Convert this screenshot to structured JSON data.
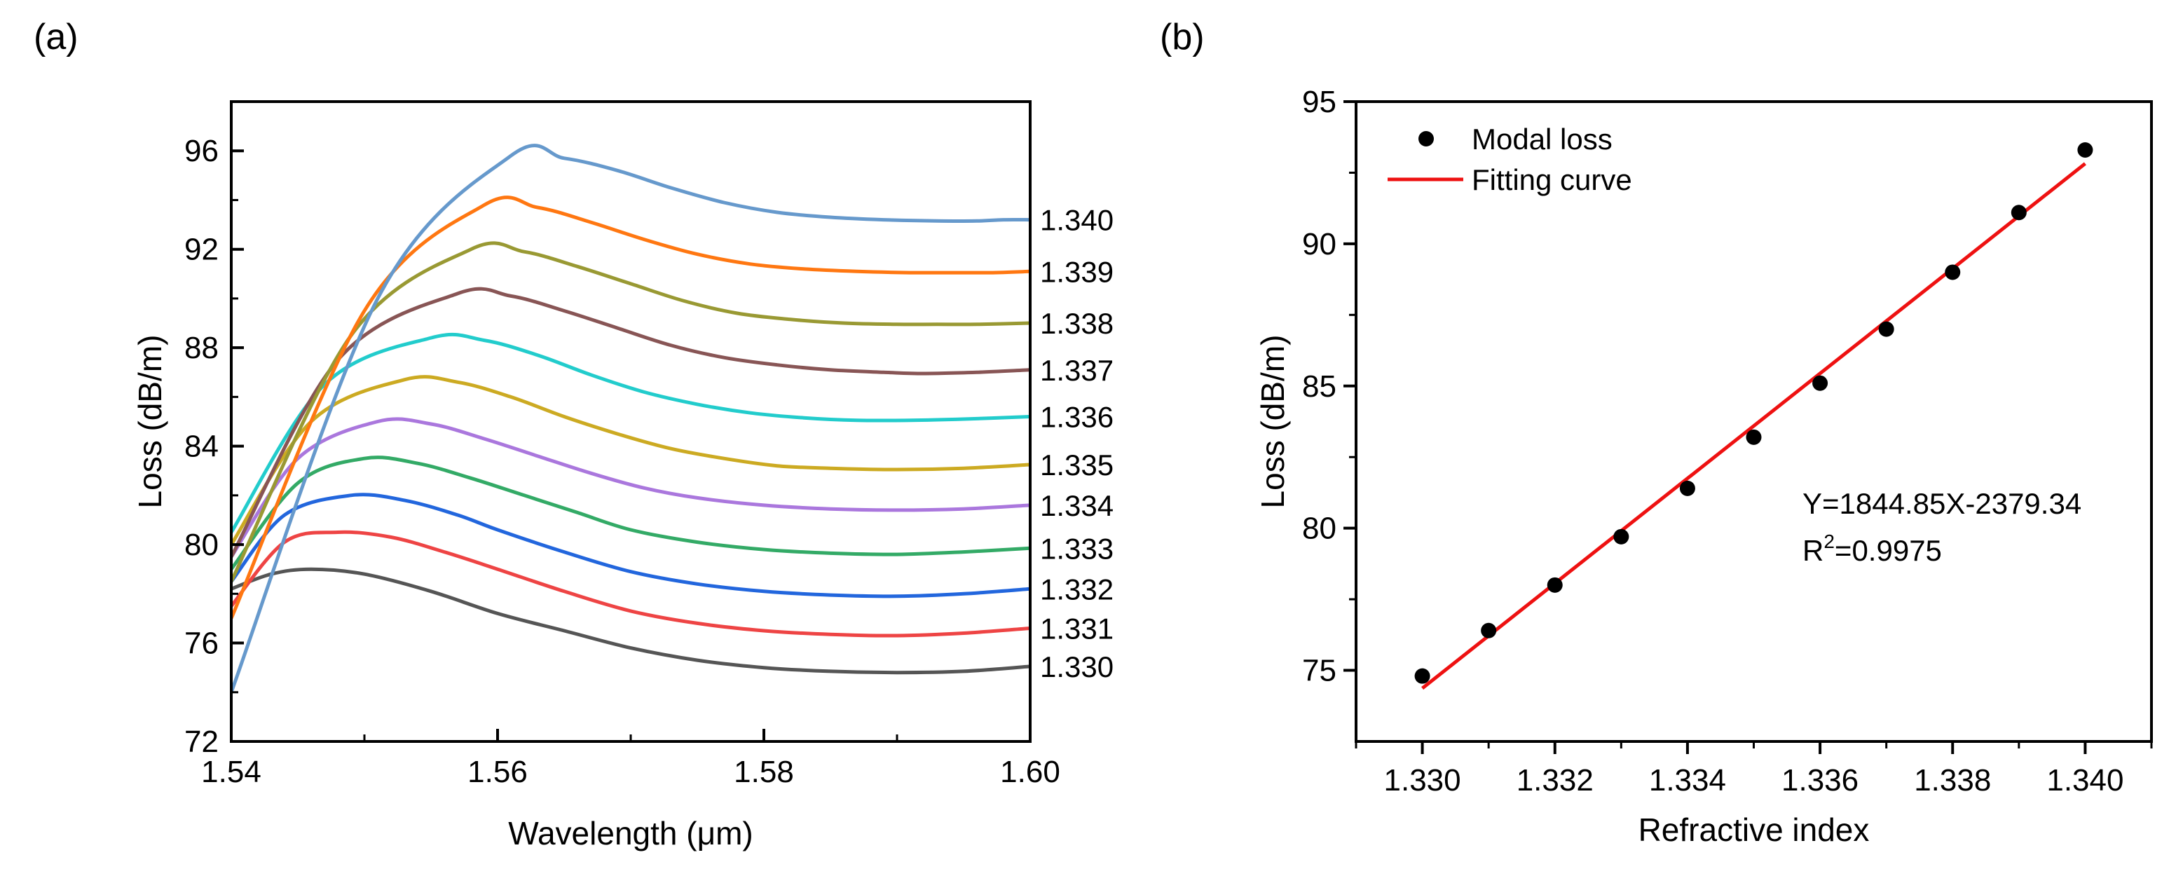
{
  "chart_data": [
    {
      "panel_label": "(a)",
      "type": "line",
      "xlabel": "Wavelength (μm)",
      "ylabel": "Loss (dB/m)",
      "xlim": [
        1.54,
        1.6
      ],
      "ylim": [
        72,
        98
      ],
      "xticks": [
        1.54,
        1.56,
        1.58,
        1.6
      ],
      "xtick_labels": [
        "1.54",
        "1.56",
        "1.58",
        "1.60"
      ],
      "yticks": [
        72,
        76,
        80,
        84,
        88,
        92,
        96
      ],
      "ytick_labels": [
        "72",
        "76",
        "80",
        "84",
        "88",
        "92",
        "96"
      ],
      "series": [
        {
          "name": "1.330",
          "color": "#555555",
          "x": [
            1.54,
            1.543,
            1.546,
            1.55,
            1.555,
            1.56,
            1.565,
            1.57,
            1.575,
            1.58,
            1.585,
            1.59,
            1.595,
            1.6
          ],
          "values": [
            78.2,
            78.8,
            79.0,
            78.8,
            78.1,
            77.2,
            76.5,
            75.8,
            75.3,
            75.0,
            74.85,
            74.8,
            74.85,
            75.05
          ]
        },
        {
          "name": "1.331",
          "color": "#ee4444",
          "x": [
            1.54,
            1.544,
            1.548,
            1.552,
            1.556,
            1.56,
            1.565,
            1.57,
            1.575,
            1.58,
            1.585,
            1.59,
            1.595,
            1.6
          ],
          "values": [
            77.5,
            80.1,
            80.5,
            80.3,
            79.7,
            79.0,
            78.1,
            77.3,
            76.8,
            76.5,
            76.35,
            76.3,
            76.4,
            76.6
          ]
        },
        {
          "name": "1.332",
          "color": "#2266dd",
          "x": [
            1.54,
            1.544,
            1.549,
            1.553,
            1.557,
            1.56,
            1.565,
            1.57,
            1.575,
            1.58,
            1.585,
            1.59,
            1.595,
            1.6
          ],
          "values": [
            78.5,
            81.2,
            82.0,
            81.8,
            81.2,
            80.6,
            79.7,
            78.9,
            78.4,
            78.1,
            77.95,
            77.9,
            78.0,
            78.2
          ]
        },
        {
          "name": "1.333",
          "color": "#33aa66",
          "x": [
            1.54,
            1.545,
            1.55,
            1.554,
            1.558,
            1.562,
            1.566,
            1.57,
            1.575,
            1.58,
            1.585,
            1.59,
            1.595,
            1.6
          ],
          "values": [
            79.0,
            82.5,
            83.5,
            83.3,
            82.7,
            82.0,
            81.3,
            80.6,
            80.1,
            79.8,
            79.65,
            79.6,
            79.7,
            79.85
          ]
        },
        {
          "name": "1.334",
          "color": "#aa77dd",
          "x": [
            1.54,
            1.545,
            1.551,
            1.555,
            1.559,
            1.563,
            1.567,
            1.571,
            1.575,
            1.58,
            1.585,
            1.59,
            1.595,
            1.6
          ],
          "values": [
            79.5,
            83.5,
            85.0,
            84.9,
            84.3,
            83.6,
            82.9,
            82.3,
            81.9,
            81.6,
            81.45,
            81.4,
            81.45,
            81.6
          ]
        },
        {
          "name": "1.335",
          "color": "#ccaa22",
          "x": [
            1.54,
            1.546,
            1.553,
            1.557,
            1.561,
            1.565,
            1.569,
            1.573,
            1.577,
            1.581,
            1.585,
            1.59,
            1.595,
            1.6
          ],
          "values": [
            80.0,
            85.0,
            86.7,
            86.6,
            86.0,
            85.2,
            84.5,
            83.9,
            83.5,
            83.2,
            83.1,
            83.05,
            83.1,
            83.25
          ]
        },
        {
          "name": "1.336",
          "color": "#22cccc",
          "x": [
            1.54,
            1.547,
            1.555,
            1.559,
            1.563,
            1.567,
            1.571,
            1.575,
            1.579,
            1.583,
            1.587,
            1.591,
            1.595,
            1.6
          ],
          "values": [
            80.5,
            86.5,
            88.4,
            88.3,
            87.7,
            86.9,
            86.2,
            85.7,
            85.35,
            85.15,
            85.05,
            85.05,
            85.1,
            85.2
          ]
        },
        {
          "name": "1.337",
          "color": "#885555",
          "x": [
            1.54,
            1.548,
            1.557,
            1.561,
            1.565,
            1.569,
            1.573,
            1.577,
            1.581,
            1.585,
            1.589,
            1.592,
            1.596,
            1.6
          ],
          "values": [
            79.5,
            87.5,
            90.2,
            90.1,
            89.5,
            88.8,
            88.1,
            87.6,
            87.3,
            87.1,
            87.0,
            86.95,
            87.0,
            87.1
          ]
        },
        {
          "name": "1.338",
          "color": "#999933",
          "x": [
            1.54,
            1.549,
            1.558,
            1.562,
            1.566,
            1.57,
            1.574,
            1.578,
            1.582,
            1.586,
            1.59,
            1.593,
            1.596,
            1.6
          ],
          "values": [
            78.5,
            88.5,
            92.0,
            91.9,
            91.3,
            90.6,
            89.9,
            89.4,
            89.15,
            89.0,
            88.95,
            88.95,
            88.95,
            89.0
          ]
        },
        {
          "name": "1.339",
          "color": "#ff7711",
          "x": [
            1.54,
            1.55,
            1.559,
            1.563,
            1.567,
            1.571,
            1.575,
            1.579,
            1.583,
            1.587,
            1.591,
            1.594,
            1.597,
            1.6
          ],
          "values": [
            77.0,
            89.5,
            93.8,
            93.7,
            93.1,
            92.4,
            91.8,
            91.4,
            91.2,
            91.1,
            91.05,
            91.05,
            91.05,
            91.1
          ]
        },
        {
          "name": "1.340",
          "color": "#6699cc",
          "x": [
            1.54,
            1.551,
            1.561,
            1.565,
            1.569,
            1.573,
            1.577,
            1.581,
            1.585,
            1.589,
            1.593,
            1.596,
            1.598,
            1.6
          ],
          "values": [
            74.0,
            90.0,
            95.8,
            95.7,
            95.2,
            94.5,
            93.9,
            93.5,
            93.3,
            93.2,
            93.15,
            93.15,
            93.2,
            93.2
          ]
        }
      ]
    },
    {
      "panel_label": "(b)",
      "type": "scatter",
      "xlabel": "Refractive index",
      "ylabel": "Loss (dB/m)",
      "xlim": [
        1.329,
        1.341
      ],
      "ylim": [
        72.5,
        95
      ],
      "xticks": [
        1.33,
        1.332,
        1.334,
        1.336,
        1.338,
        1.34
      ],
      "xtick_labels": [
        "1.330",
        "1.332",
        "1.334",
        "1.336",
        "1.338",
        "1.340"
      ],
      "yticks": [
        75,
        80,
        85,
        90,
        95
      ],
      "ytick_labels": [
        "75",
        "80",
        "85",
        "90",
        "95"
      ],
      "series": [
        {
          "name": "Modal loss",
          "kind": "scatter",
          "color": "#000000",
          "x": [
            1.33,
            1.331,
            1.332,
            1.333,
            1.334,
            1.335,
            1.336,
            1.337,
            1.338,
            1.339,
            1.34
          ],
          "values": [
            74.8,
            76.4,
            78.0,
            79.7,
            81.4,
            83.2,
            85.1,
            87.0,
            89.0,
            91.1,
            93.3
          ]
        },
        {
          "name": "Fitting curve",
          "kind": "line",
          "color": "#ee1111",
          "x": [
            1.33,
            1.34
          ],
          "values": [
            74.37,
            92.82
          ]
        }
      ],
      "annotation": {
        "line1": "Y=1844.85X-2379.34",
        "r_prefix": "R",
        "r_sup": "2",
        "r_suffix": "=0.9975"
      }
    }
  ]
}
